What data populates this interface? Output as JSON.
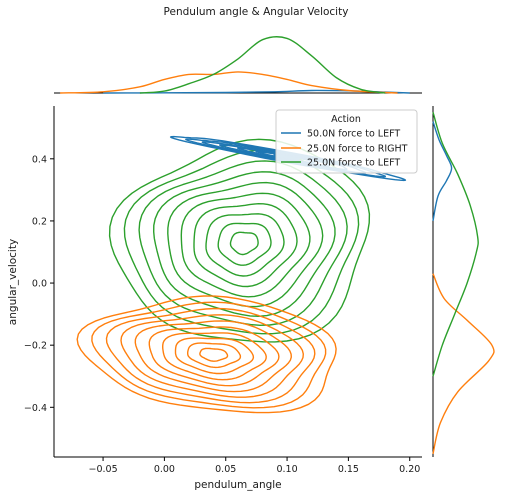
{
  "chart_data": {
    "type": "kde-joint",
    "title": "Pendulum angle & Angular Velocity",
    "xlabel": "pendulum_angle",
    "ylabel": "angular_velocity",
    "xlim": [
      -0.09,
      0.21
    ],
    "ylim": [
      -0.56,
      0.57
    ],
    "xticks": [
      -0.05,
      0.0,
      0.05,
      0.1,
      0.15,
      0.2
    ],
    "xtick_labels": [
      "−0.05",
      "0.00",
      "0.05",
      "0.10",
      "0.15",
      "0.20"
    ],
    "yticks": [
      -0.4,
      -0.2,
      0.0,
      0.2,
      0.4
    ],
    "ytick_labels": [
      "−0.4",
      "−0.2",
      "0.0",
      "0.2",
      "0.4"
    ],
    "grid": false,
    "legend": {
      "title": "Action",
      "position": "top-right",
      "entries": [
        "50.0N force to LEFT",
        "25.0N force to RIGHT",
        "25.0N force to LEFT"
      ]
    },
    "series": [
      {
        "name": "50.0N force to LEFT",
        "color": "#1f77b4",
        "kde": {
          "cx": 0.1,
          "cy": 0.405,
          "sx": 0.04,
          "sy": 0.03,
          "rho": -0.97,
          "rings": 7
        },
        "x_marginal": [
          [
            -0.05,
            0.0
          ],
          [
            0.0,
            0.003
          ],
          [
            0.05,
            0.008
          ],
          [
            0.09,
            0.02
          ],
          [
            0.12,
            0.04
          ],
          [
            0.15,
            0.035
          ],
          [
            0.18,
            0.015
          ],
          [
            0.2,
            0.0
          ]
        ],
        "y_marginal": [
          [
            0.2,
            0.0
          ],
          [
            0.28,
            0.08
          ],
          [
            0.33,
            0.22
          ],
          [
            0.37,
            0.3
          ],
          [
            0.41,
            0.22
          ],
          [
            0.46,
            0.1
          ],
          [
            0.52,
            0.0
          ]
        ]
      },
      {
        "name": "25.0N force to RIGHT",
        "color": "#ff7f0e",
        "kde": {
          "cx": 0.04,
          "cy": -0.23,
          "sx": 0.045,
          "sy": 0.08,
          "rho": -0.15,
          "rings": 10
        },
        "x_marginal": [
          [
            -0.085,
            0.0
          ],
          [
            -0.05,
            0.02
          ],
          [
            -0.02,
            0.1
          ],
          [
            0.0,
            0.22
          ],
          [
            0.02,
            0.3
          ],
          [
            0.04,
            0.3
          ],
          [
            0.06,
            0.34
          ],
          [
            0.08,
            0.3
          ],
          [
            0.1,
            0.22
          ],
          [
            0.12,
            0.12
          ],
          [
            0.15,
            0.04
          ],
          [
            0.19,
            0.0
          ]
        ],
        "y_marginal": [
          [
            -0.55,
            0.0
          ],
          [
            -0.45,
            0.12
          ],
          [
            -0.35,
            0.4
          ],
          [
            -0.25,
            0.9
          ],
          [
            -0.2,
            0.95
          ],
          [
            -0.12,
            0.55
          ],
          [
            -0.05,
            0.18
          ],
          [
            0.03,
            0.0
          ]
        ]
      },
      {
        "name": "25.0N force to LEFT",
        "color": "#2ca02c",
        "kde": {
          "cx": 0.065,
          "cy": 0.13,
          "sx": 0.045,
          "sy": 0.14,
          "rho": 0.05,
          "rings": 10
        },
        "x_marginal": [
          [
            -0.02,
            0.0
          ],
          [
            0.0,
            0.03
          ],
          [
            0.02,
            0.15
          ],
          [
            0.04,
            0.3
          ],
          [
            0.06,
            0.55
          ],
          [
            0.08,
            0.86
          ],
          [
            0.1,
            0.88
          ],
          [
            0.12,
            0.6
          ],
          [
            0.14,
            0.25
          ],
          [
            0.16,
            0.06
          ],
          [
            0.18,
            0.0
          ]
        ],
        "y_marginal": [
          [
            -0.3,
            0.0
          ],
          [
            -0.2,
            0.15
          ],
          [
            -0.1,
            0.35
          ],
          [
            0.0,
            0.55
          ],
          [
            0.1,
            0.7
          ],
          [
            0.15,
            0.72
          ],
          [
            0.25,
            0.6
          ],
          [
            0.35,
            0.4
          ],
          [
            0.45,
            0.15
          ],
          [
            0.55,
            0.0
          ]
        ]
      }
    ]
  }
}
